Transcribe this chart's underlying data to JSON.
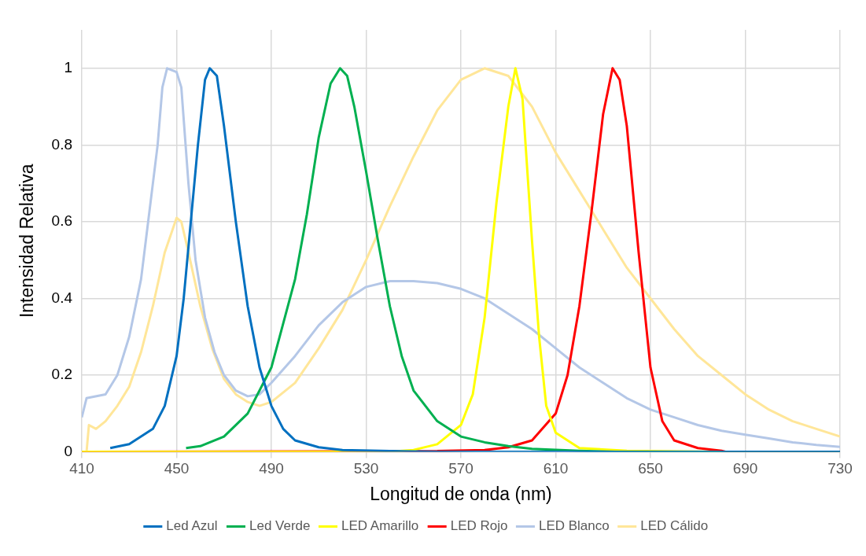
{
  "chart_data": {
    "type": "line",
    "xlabel": "Longitud de onda (nm)",
    "ylabel": "Intensidad Relativa",
    "xlim": [
      410,
      730
    ],
    "xticks": [
      410,
      450,
      490,
      530,
      570,
      610,
      650,
      690,
      730
    ],
    "ylim": [
      0,
      1.1
    ],
    "yticks": [
      0,
      0.2,
      0.4,
      0.6,
      0.8,
      1
    ],
    "grid": true,
    "legend": "bottom",
    "marker": "none",
    "line_style": "solid",
    "series": [
      {
        "name": "Led Azul",
        "color": "#0070c0",
        "x": [
          422,
          430,
          440,
          445,
          450,
          453,
          456,
          459,
          462,
          464,
          467,
          470,
          475,
          480,
          485,
          490,
          495,
          500,
          510,
          520,
          540,
          560,
          730
        ],
        "values": [
          0.01,
          0.02,
          0.06,
          0.12,
          0.25,
          0.4,
          0.6,
          0.8,
          0.97,
          1.0,
          0.98,
          0.85,
          0.6,
          0.38,
          0.22,
          0.12,
          0.06,
          0.03,
          0.012,
          0.005,
          0.002,
          0,
          0
        ]
      },
      {
        "name": "Led Verde",
        "color": "#00b050",
        "x": [
          454,
          460,
          470,
          480,
          490,
          500,
          505,
          510,
          515,
          519,
          522,
          525,
          530,
          535,
          540,
          545,
          550,
          560,
          570,
          580,
          590,
          600,
          620,
          635,
          730
        ],
        "values": [
          0.01,
          0.015,
          0.04,
          0.1,
          0.22,
          0.45,
          0.62,
          0.82,
          0.96,
          1.0,
          0.98,
          0.9,
          0.73,
          0.55,
          0.38,
          0.25,
          0.16,
          0.08,
          0.04,
          0.025,
          0.015,
          0.008,
          0.003,
          0,
          0
        ]
      },
      {
        "name": "LED Amarillo",
        "color": "#ffff00",
        "x": [
          410,
          540,
          550,
          560,
          570,
          575,
          580,
          585,
          590,
          593,
          596,
          600,
          603,
          606,
          610,
          620,
          640,
          680
        ],
        "values": [
          0,
          0,
          0.005,
          0.02,
          0.07,
          0.15,
          0.35,
          0.65,
          0.9,
          1.0,
          0.92,
          0.55,
          0.3,
          0.12,
          0.05,
          0.01,
          0.003,
          0
        ]
      },
      {
        "name": "LED Rojo",
        "color": "#ff0000",
        "x": [
          410,
          560,
          580,
          590,
          600,
          610,
          615,
          620,
          625,
          630,
          634,
          637,
          640,
          645,
          650,
          655,
          660,
          670,
          680,
          682,
          730
        ],
        "values": [
          0,
          0.002,
          0.005,
          0.012,
          0.03,
          0.1,
          0.2,
          0.38,
          0.62,
          0.88,
          1.0,
          0.97,
          0.85,
          0.52,
          0.22,
          0.08,
          0.03,
          0.01,
          0.003,
          0,
          0
        ]
      },
      {
        "name": "LED Blanco",
        "color": "#b4c7e7",
        "x": [
          410,
          412,
          420,
          425,
          430,
          435,
          437,
          440,
          442,
          444,
          446,
          450,
          452,
          455,
          458,
          462,
          466,
          470,
          475,
          480,
          485,
          490,
          500,
          510,
          520,
          530,
          540,
          550,
          560,
          570,
          580,
          590,
          600,
          610,
          620,
          630,
          640,
          650,
          660,
          670,
          680,
          690,
          700,
          710,
          720,
          730
        ],
        "values": [
          0.09,
          0.14,
          0.15,
          0.2,
          0.3,
          0.45,
          0.55,
          0.7,
          0.8,
          0.95,
          1.0,
          0.99,
          0.95,
          0.7,
          0.5,
          0.35,
          0.26,
          0.2,
          0.16,
          0.145,
          0.15,
          0.18,
          0.25,
          0.33,
          0.39,
          0.43,
          0.445,
          0.445,
          0.44,
          0.425,
          0.4,
          0.36,
          0.32,
          0.27,
          0.22,
          0.18,
          0.14,
          0.11,
          0.09,
          0.07,
          0.055,
          0.045,
          0.035,
          0.025,
          0.018,
          0.013
        ]
      },
      {
        "name": "LED Cálido",
        "color": "#ffe699",
        "x": [
          412,
          413,
          416,
          420,
          425,
          430,
          435,
          440,
          445,
          450,
          452,
          455,
          460,
          465,
          470,
          475,
          480,
          485,
          490,
          500,
          510,
          520,
          530,
          540,
          550,
          560,
          570,
          580,
          590,
          600,
          610,
          620,
          630,
          640,
          650,
          660,
          670,
          680,
          690,
          700,
          710,
          720,
          730
        ],
        "values": [
          0,
          0.07,
          0.06,
          0.08,
          0.12,
          0.17,
          0.26,
          0.38,
          0.52,
          0.61,
          0.6,
          0.52,
          0.38,
          0.27,
          0.19,
          0.15,
          0.13,
          0.12,
          0.13,
          0.18,
          0.27,
          0.37,
          0.5,
          0.64,
          0.77,
          0.89,
          0.97,
          1.0,
          0.98,
          0.9,
          0.78,
          0.68,
          0.58,
          0.48,
          0.4,
          0.32,
          0.25,
          0.2,
          0.15,
          0.11,
          0.08,
          0.06,
          0.04
        ]
      }
    ]
  }
}
